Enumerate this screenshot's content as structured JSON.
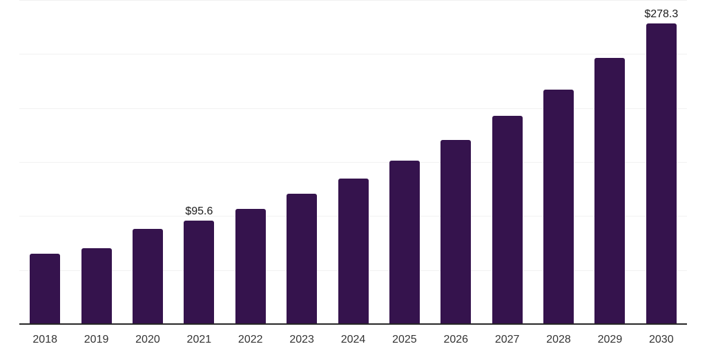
{
  "chart": {
    "background": "#ffffff",
    "bar_color": "#35134D",
    "grid_color": "#f1f1f1",
    "axis_color": "#262626",
    "tick_label_color": "#333333",
    "data_label_color": "#1a1a1a"
  },
  "chart_data": {
    "type": "bar",
    "title": "",
    "xlabel": "",
    "ylabel": "",
    "categories": [
      "2018",
      "2019",
      "2020",
      "2021",
      "2022",
      "2023",
      "2024",
      "2025",
      "2026",
      "2027",
      "2028",
      "2029",
      "2030"
    ],
    "values": [
      65.1,
      70.2,
      87.9,
      95.6,
      106.6,
      120.8,
      134.7,
      151.0,
      170.4,
      192.8,
      217.0,
      246.1,
      278.3
    ],
    "data_labels": [
      {
        "category": "2021",
        "text": "$95.6"
      },
      {
        "category": "2030",
        "text": "$278.3"
      }
    ],
    "ylim": [
      0,
      300
    ],
    "grid_step": 50,
    "grid": true,
    "legend": false
  }
}
